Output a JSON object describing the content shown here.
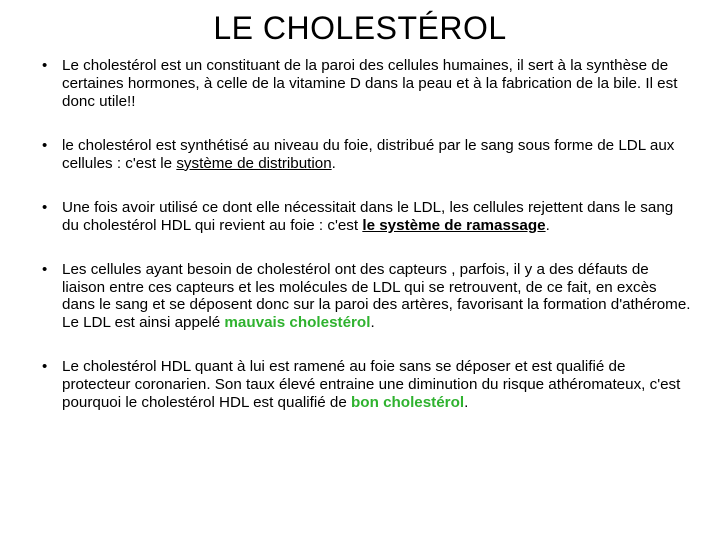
{
  "colors": {
    "background": "#ffffff",
    "text": "#000000",
    "accent": "#2fb22f"
  },
  "typography": {
    "title_fontsize": 32,
    "body_fontsize": 15.2,
    "font_family": "Arial"
  },
  "title": "LE CHOLESTÉROL",
  "bullets": [
    {
      "parts": [
        {
          "text": "Le cholestérol est un constituant de la paroi des cellules humaines, il sert à la synthèse de certaines hormones, à celle de la vitamine D dans la peau et à la fabrication de la bile. Il est donc utile!!"
        }
      ]
    },
    {
      "parts": [
        {
          "text": "le cholestérol est synthétisé au niveau du foie, distribué par le sang sous forme de LDL aux cellules : c'est le "
        },
        {
          "text": "système de distribution",
          "underline": true
        },
        {
          "text": "."
        }
      ]
    },
    {
      "parts": [
        {
          "text": "Une fois avoir utilisé ce dont elle nécessitait dans le LDL, les cellules rejettent dans le sang du cholestérol HDL qui revient au foie : c'est "
        },
        {
          "text": "le système de ramassage",
          "underline": true,
          "bold": true
        },
        {
          "text": "."
        }
      ]
    },
    {
      "parts": [
        {
          "text": "Les cellules ayant besoin de cholestérol ont des capteurs , parfois, il y a des défauts de liaison entre ces capteurs et les molécules de LDL qui se retrouvent, de ce fait, en excès dans le sang et se déposent donc sur la paroi des artères, favorisant la formation d'athérome. Le LDL est ainsi appelé "
        },
        {
          "text": "mauvais cholestérol",
          "bold": true,
          "color": "accent"
        },
        {
          "text": "."
        }
      ]
    },
    {
      "parts": [
        {
          "text": "Le cholestérol HDL quant à lui est ramené au foie sans se déposer et est qualifié de protecteur coronarien. Son taux élevé entraine une diminution du risque athéromateux, c'est pourquoi le cholestérol HDL est qualifié de "
        },
        {
          "text": "bon cholestérol",
          "bold": true,
          "color": "accent"
        },
        {
          "text": "."
        }
      ]
    }
  ]
}
